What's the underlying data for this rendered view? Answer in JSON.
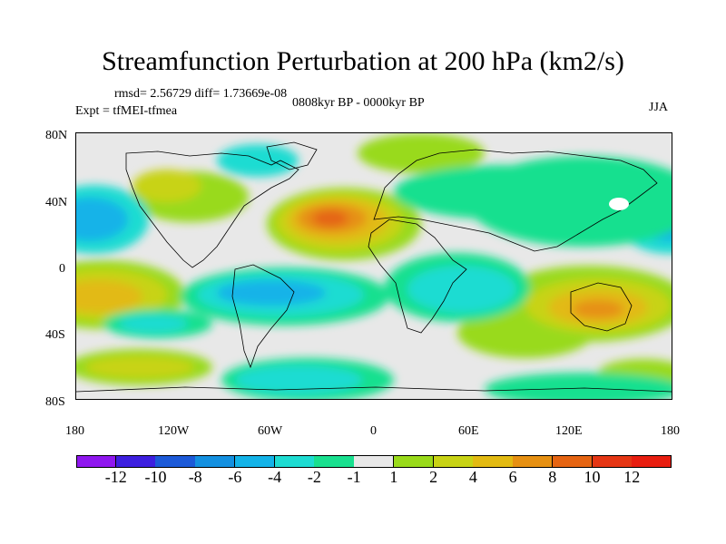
{
  "title": "Streamfunction Perturbation at 200 hPa (km2/s)",
  "stats": "rmsd= 2.56729 diff= 1.73669e-08",
  "experiment": "Expt = tfMEI-tfmea",
  "period": "0808kyr BP - 0000kyr BP",
  "season": "JJA",
  "lat_labels": [
    "80N",
    "40N",
    "0",
    "40S",
    "80S"
  ],
  "lon_labels": [
    "180",
    "120W",
    "60W",
    "0",
    "60E",
    "120E",
    "180"
  ],
  "colorbar": {
    "labels": [
      "-12",
      "-10",
      "-8",
      "-6",
      "-4",
      "-2",
      "-1",
      "1",
      "2",
      "4",
      "6",
      "8",
      "10",
      "12"
    ],
    "colors": [
      "#8f17ef",
      "#3d1fdf",
      "#1c5ad8",
      "#1390e0",
      "#13b3e8",
      "#1edcd2",
      "#19e08f",
      "#e8e8e8",
      "#99da1a",
      "#c8d315",
      "#e2ba12",
      "#e69012",
      "#e56412",
      "#e53614",
      "#e81e10"
    ]
  }
}
